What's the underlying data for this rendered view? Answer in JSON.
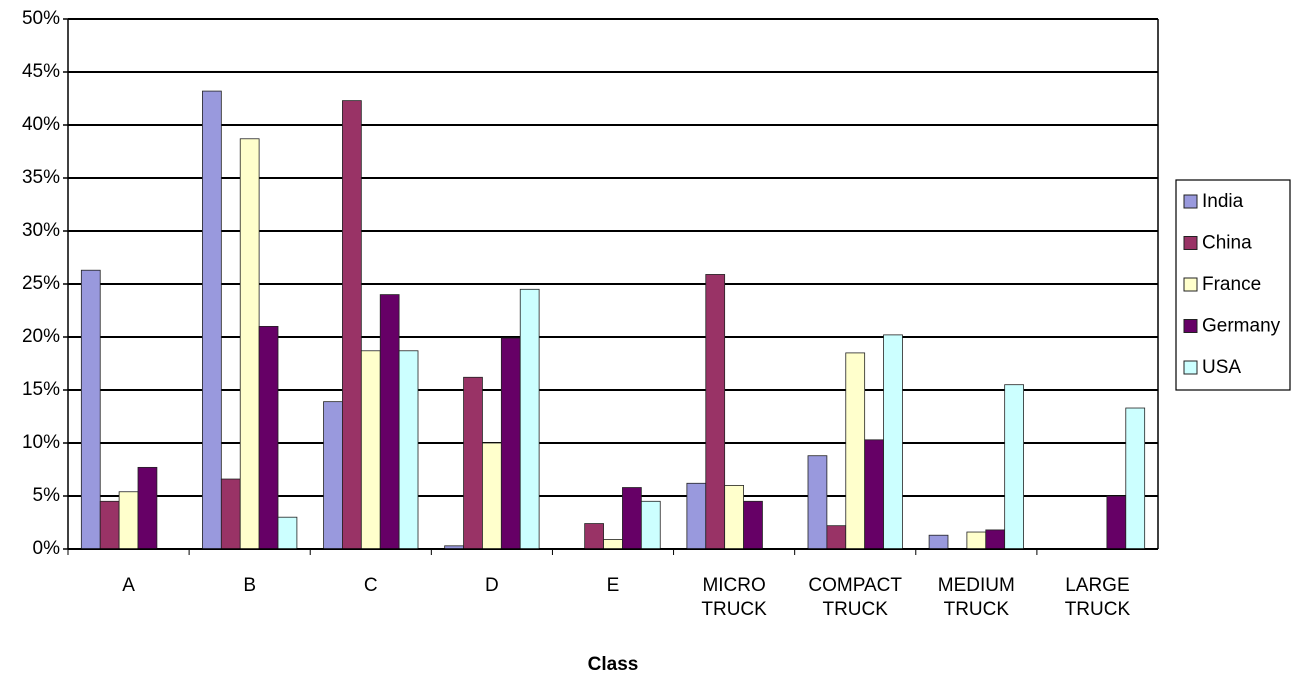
{
  "chart_data": {
    "type": "bar",
    "x_label": "Class",
    "categories": [
      "A",
      "B",
      "C",
      "D",
      "E",
      "MICRO TRUCK",
      "COMPACT TRUCK",
      "MEDIUM TRUCK",
      "LARGE TRUCK"
    ],
    "series": [
      {
        "name": "India",
        "color": "#9999dd",
        "values": [
          26.3,
          43.2,
          13.9,
          0.3,
          0,
          6.2,
          8.8,
          1.3,
          0
        ]
      },
      {
        "name": "China",
        "color": "#993366",
        "values": [
          4.5,
          6.6,
          42.3,
          16.2,
          2.4,
          25.9,
          2.2,
          0,
          0
        ]
      },
      {
        "name": "France",
        "color": "#ffffcc",
        "values": [
          5.4,
          38.7,
          18.7,
          10.0,
          0.9,
          6.0,
          18.5,
          1.6,
          0
        ]
      },
      {
        "name": "Germany",
        "color": "#660066",
        "values": [
          7.7,
          21.0,
          24.0,
          19.9,
          5.8,
          4.5,
          10.3,
          1.8,
          5.0
        ]
      },
      {
        "name": "USA",
        "color": "#ccffff",
        "values": [
          0,
          3.0,
          18.7,
          24.5,
          4.5,
          0,
          20.2,
          15.5,
          13.3
        ]
      }
    ],
    "ylim": [
      0,
      50
    ],
    "yticks": [
      {
        "value": 0,
        "label": "0%"
      },
      {
        "value": 5,
        "label": "5%"
      },
      {
        "value": 10,
        "label": "10%"
      },
      {
        "value": 15,
        "label": "15%"
      },
      {
        "value": 20,
        "label": "20%"
      },
      {
        "value": 25,
        "label": "25%"
      },
      {
        "value": 30,
        "label": "30%"
      },
      {
        "value": 35,
        "label": "35%"
      },
      {
        "value": 40,
        "label": "40%"
      },
      {
        "value": 45,
        "label": "45%"
      },
      {
        "value": 50,
        "label": "50%"
      }
    ],
    "grid": true,
    "legend": "right"
  }
}
